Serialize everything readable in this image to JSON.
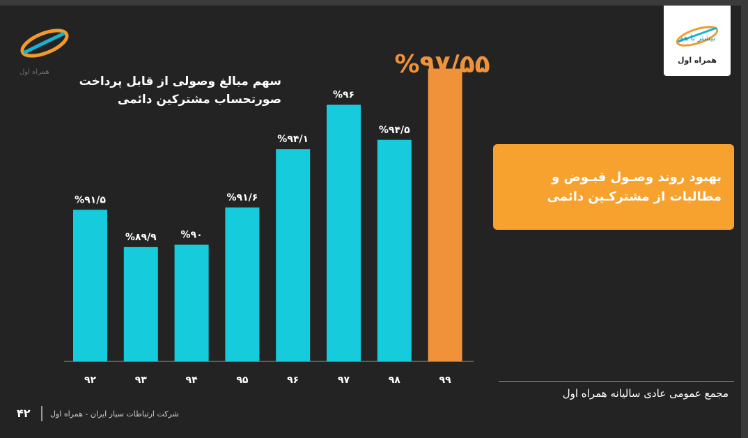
{
  "header": {
    "left_logo_text": "همراه اول",
    "right_logo_tagline": "بیشتر با هم",
    "right_logo_brand": "همراه اول"
  },
  "chart_data": {
    "type": "bar",
    "title": "سهم مبالغ وصولی از قابل پرداخت صورتحساب مشترکین دائمی",
    "categories": [
      "۹۲",
      "۹۳",
      "۹۴",
      "۹۵",
      "۹۶",
      "۹۷",
      "۹۸",
      "۹۹"
    ],
    "values": [
      91.5,
      89.9,
      90,
      91.6,
      94.1,
      96,
      94.5,
      97.55
    ],
    "value_labels": [
      "%۹۱/۵",
      "%۸۹/۹",
      "%۹۰",
      "%۹۱/۶",
      "%۹۴/۱",
      "%۹۶",
      "%۹۴/۵",
      "%۹۷/۵۵"
    ],
    "colors": {
      "default": "#16ccdc",
      "highlight": "#f0923a"
    },
    "highlight_index": 7,
    "ylim": [
      85,
      98
    ]
  },
  "callout": {
    "text": "بهبود روند وصـول قبـوض و مطالبات از مشتر‌کـین دائمی"
  },
  "meeting": "مجمع عمومی عادی سالیانه همراه اول",
  "footer": {
    "page_number": "۴۲",
    "company": "شرکت ارتباطات سیار ایران - همراه اول"
  }
}
